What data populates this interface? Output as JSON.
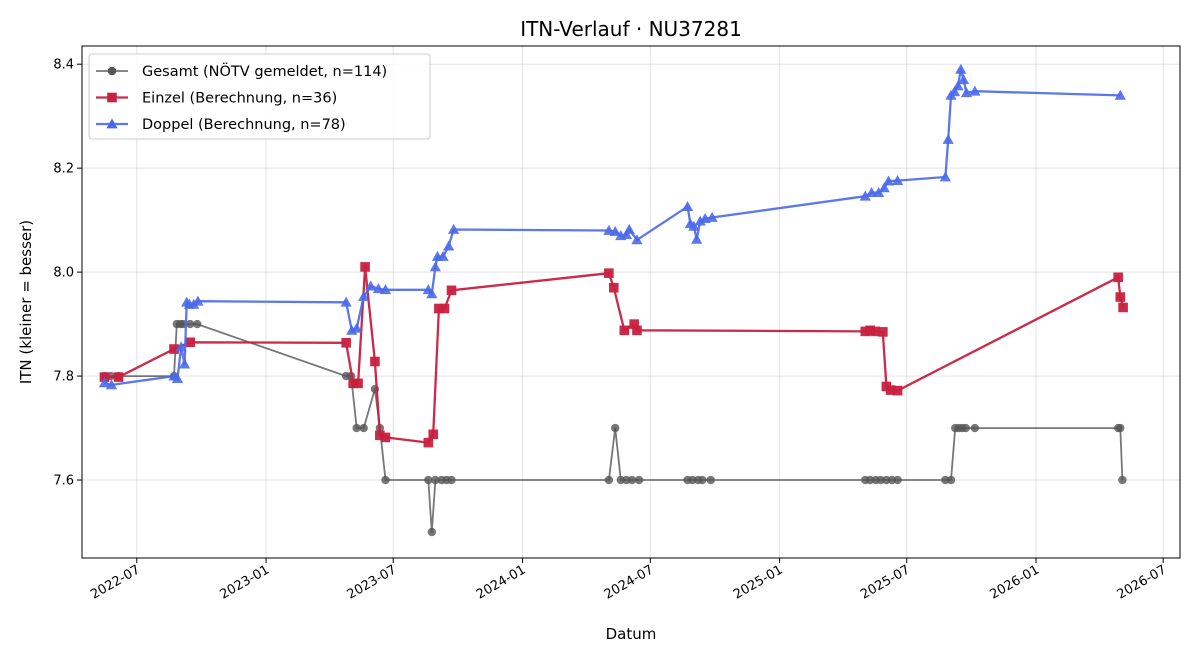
{
  "chart_data": {
    "type": "line",
    "title": "ITN-Verlauf · NU37281",
    "xlabel": "Datum",
    "ylabel": "ITN  (kleiner = besser)",
    "x_ticks": [
      "2022-07",
      "2023-01",
      "2023-07",
      "2024-01",
      "2024-07",
      "2025-01",
      "2025-07",
      "2026-01",
      "2026-07"
    ],
    "y_ticks": [
      "7.6",
      "7.8",
      "8.0",
      "8.2",
      "8.4"
    ],
    "xlim": [
      "2022-04-14",
      "2026-07-25"
    ],
    "ylim": [
      7.45,
      8.435
    ],
    "grid": true,
    "legend_position": "upper-left",
    "series": [
      {
        "name": "Gesamt (NÖTV gemeldet, n=114)",
        "color": "#555555",
        "marker": "circle",
        "points": [
          [
            "2022-05-16",
            7.8
          ],
          [
            "2022-05-25",
            7.8
          ],
          [
            "2022-06-05",
            7.8
          ],
          [
            "2022-08-23",
            7.8
          ],
          [
            "2022-08-27",
            7.9
          ],
          [
            "2022-09-01",
            7.9
          ],
          [
            "2022-09-05",
            7.9
          ],
          [
            "2022-09-15",
            7.9
          ],
          [
            "2022-09-25",
            7.9
          ],
          [
            "2023-04-25",
            7.8
          ],
          [
            "2023-05-02",
            7.8
          ],
          [
            "2023-05-10",
            7.7
          ],
          [
            "2023-05-20",
            7.7
          ],
          [
            "2023-06-05",
            7.775
          ],
          [
            "2023-06-12",
            7.7
          ],
          [
            "2023-06-20",
            7.6
          ],
          [
            "2023-08-20",
            7.6
          ],
          [
            "2023-08-25",
            7.5
          ],
          [
            "2023-08-30",
            7.6
          ],
          [
            "2023-09-08",
            7.6
          ],
          [
            "2023-09-15",
            7.6
          ],
          [
            "2023-09-22",
            7.6
          ],
          [
            "2024-05-03",
            7.6
          ],
          [
            "2024-05-12",
            7.7
          ],
          [
            "2024-05-20",
            7.6
          ],
          [
            "2024-05-28",
            7.6
          ],
          [
            "2024-06-05",
            7.6
          ],
          [
            "2024-06-15",
            7.6
          ],
          [
            "2024-08-23",
            7.6
          ],
          [
            "2024-08-30",
            7.6
          ],
          [
            "2024-09-07",
            7.6
          ],
          [
            "2024-09-13",
            7.6
          ],
          [
            "2024-09-25",
            7.6
          ],
          [
            "2025-05-03",
            7.6
          ],
          [
            "2025-05-10",
            7.6
          ],
          [
            "2025-05-18",
            7.6
          ],
          [
            "2025-05-25",
            7.6
          ],
          [
            "2025-06-02",
            7.6
          ],
          [
            "2025-06-10",
            7.6
          ],
          [
            "2025-06-18",
            7.6
          ],
          [
            "2025-08-25",
            7.6
          ],
          [
            "2025-09-02",
            7.6
          ],
          [
            "2025-09-08",
            7.7
          ],
          [
            "2025-09-13",
            7.7
          ],
          [
            "2025-09-18",
            7.7
          ],
          [
            "2025-09-23",
            7.7
          ],
          [
            "2025-10-06",
            7.7
          ],
          [
            "2026-04-28",
            7.7
          ],
          [
            "2026-05-01",
            7.7
          ],
          [
            "2026-05-04",
            7.6
          ]
        ]
      },
      {
        "name": "Einzel (Berechnung, n=36)",
        "color": "#c8203f",
        "marker": "square",
        "points": [
          [
            "2022-05-16",
            7.798
          ],
          [
            "2022-06-05",
            7.798
          ],
          [
            "2022-08-23",
            7.852
          ],
          [
            "2022-09-15",
            7.865
          ],
          [
            "2023-04-25",
            7.864
          ],
          [
            "2023-05-05",
            7.786
          ],
          [
            "2023-05-12",
            7.786
          ],
          [
            "2023-05-22",
            8.01
          ],
          [
            "2023-06-05",
            7.828
          ],
          [
            "2023-06-12",
            7.686
          ],
          [
            "2023-06-20",
            7.682
          ],
          [
            "2023-08-20",
            7.672
          ],
          [
            "2023-08-27",
            7.688
          ],
          [
            "2023-09-04",
            7.93
          ],
          [
            "2023-09-12",
            7.93
          ],
          [
            "2023-09-22",
            7.965
          ],
          [
            "2024-05-03",
            7.998
          ],
          [
            "2024-05-10",
            7.97
          ],
          [
            "2024-05-25",
            7.888
          ],
          [
            "2024-06-08",
            7.9
          ],
          [
            "2024-06-12",
            7.888
          ],
          [
            "2025-05-03",
            7.886
          ],
          [
            "2025-05-10",
            7.888
          ],
          [
            "2025-05-17",
            7.886
          ],
          [
            "2025-05-28",
            7.885
          ],
          [
            "2025-06-02",
            7.78
          ],
          [
            "2025-06-08",
            7.773
          ],
          [
            "2025-06-18",
            7.772
          ],
          [
            "2026-04-28",
            7.99
          ],
          [
            "2026-05-01",
            7.952
          ],
          [
            "2026-05-05",
            7.932
          ]
        ]
      },
      {
        "name": "Doppel (Berechnung, n=78)",
        "color": "#4a69ea",
        "marker": "triangle",
        "points": [
          [
            "2022-05-16",
            7.787
          ],
          [
            "2022-05-26",
            7.783
          ],
          [
            "2022-08-23",
            7.8
          ],
          [
            "2022-08-28",
            7.795
          ],
          [
            "2022-09-02",
            7.856
          ],
          [
            "2022-09-07",
            7.823
          ],
          [
            "2022-09-10",
            7.942
          ],
          [
            "2022-09-14",
            7.938
          ],
          [
            "2022-09-20",
            7.938
          ],
          [
            "2022-09-26",
            7.944
          ],
          [
            "2023-04-25",
            7.942
          ],
          [
            "2023-05-03",
            7.888
          ],
          [
            "2023-05-10",
            7.892
          ],
          [
            "2023-05-20",
            7.953
          ],
          [
            "2023-05-30",
            7.973
          ],
          [
            "2023-06-10",
            7.968
          ],
          [
            "2023-06-20",
            7.966
          ],
          [
            "2023-08-20",
            7.966
          ],
          [
            "2023-08-25",
            7.958
          ],
          [
            "2023-08-30",
            8.01
          ],
          [
            "2023-09-02",
            8.03
          ],
          [
            "2023-09-10",
            8.03
          ],
          [
            "2023-09-18",
            8.05
          ],
          [
            "2023-09-25",
            8.082
          ],
          [
            "2024-05-03",
            8.08
          ],
          [
            "2024-05-12",
            8.078
          ],
          [
            "2024-05-20",
            8.07
          ],
          [
            "2024-05-28",
            8.072
          ],
          [
            "2024-06-01",
            8.082
          ],
          [
            "2024-06-12",
            8.062
          ],
          [
            "2024-08-23",
            8.126
          ],
          [
            "2024-08-27",
            8.093
          ],
          [
            "2024-09-01",
            8.088
          ],
          [
            "2024-09-05",
            8.063
          ],
          [
            "2024-09-10",
            8.098
          ],
          [
            "2024-09-17",
            8.103
          ],
          [
            "2024-09-27",
            8.105
          ],
          [
            "2025-05-03",
            8.146
          ],
          [
            "2025-05-12",
            8.153
          ],
          [
            "2025-05-22",
            8.153
          ],
          [
            "2025-05-30",
            8.162
          ],
          [
            "2025-06-05",
            8.175
          ],
          [
            "2025-06-18",
            8.176
          ],
          [
            "2025-08-25",
            8.183
          ],
          [
            "2025-08-29",
            8.255
          ],
          [
            "2025-09-02",
            8.34
          ],
          [
            "2025-09-07",
            8.347
          ],
          [
            "2025-09-12",
            8.358
          ],
          [
            "2025-09-16",
            8.39
          ],
          [
            "2025-09-20",
            8.37
          ],
          [
            "2025-09-24",
            8.345
          ],
          [
            "2025-10-06",
            8.348
          ],
          [
            "2026-05-01",
            8.34
          ]
        ]
      }
    ]
  }
}
